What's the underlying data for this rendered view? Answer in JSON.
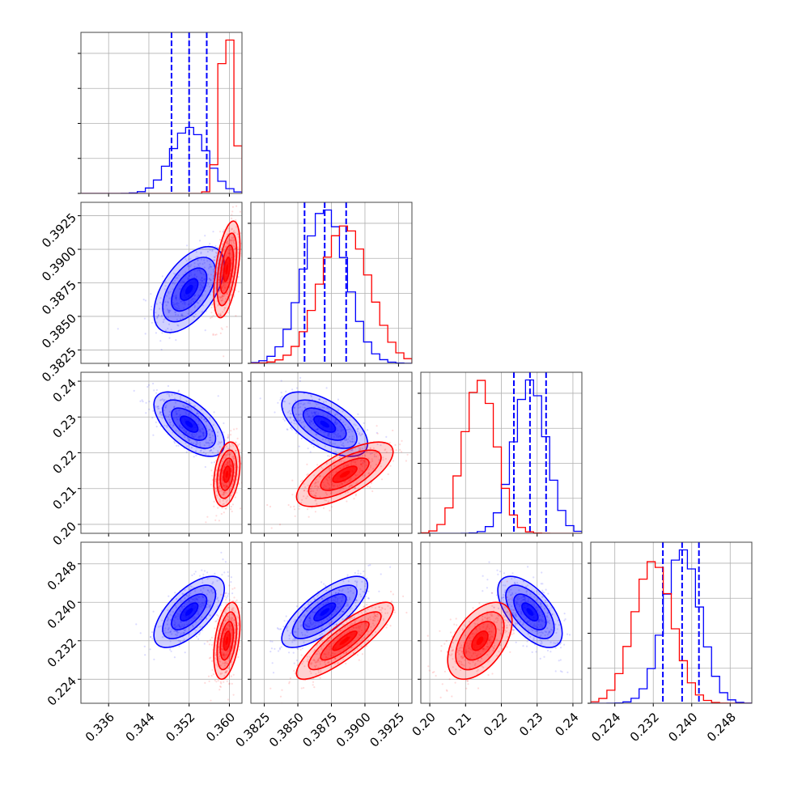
{
  "chart_data": {
    "type": "corner",
    "grid": true,
    "series": [
      {
        "color": "#0000ff",
        "quantile_lines": "dashed",
        "mean": [
          0.352,
          0.387,
          0.228,
          0.238
        ],
        "sd": [
          0.0035,
          0.0016,
          0.0045,
          0.0037
        ],
        "corr": [
          [
            1,
            0.55,
            -0.6,
            0.65
          ],
          [
            0.55,
            1,
            -0.6,
            0.75
          ],
          [
            -0.6,
            -0.6,
            1,
            -0.6
          ],
          [
            0.65,
            0.75,
            -0.6,
            1
          ]
        ],
        "quantiles": [
          [
            0.3485,
            0.352,
            0.3555
          ],
          [
            0.3855,
            0.387,
            0.3886
          ],
          [
            0.2235,
            0.228,
            0.2325
          ],
          [
            0.234,
            0.238,
            0.2415
          ]
        ]
      },
      {
        "color": "#ff0000",
        "mean": [
          0.3595,
          0.3885,
          0.214,
          0.232
        ],
        "sd": [
          0.0013,
          0.0018,
          0.0045,
          0.004
        ],
        "corr": [
          [
            1,
            0.5,
            0.3,
            0.4
          ],
          [
            0.5,
            1,
            0.7,
            0.85
          ],
          [
            0.3,
            0.7,
            1,
            0.5
          ],
          [
            0.4,
            0.85,
            0.5,
            1
          ]
        ]
      }
    ],
    "params": [
      {
        "range": [
          0.3305,
          0.3625
        ],
        "ticks": [
          0.336,
          0.344,
          0.352,
          0.36
        ],
        "tick_labels": [
          "0.336",
          "0.344",
          "0.352",
          "0.360"
        ]
      },
      {
        "range": [
          0.3815,
          0.3935
        ],
        "ticks": [
          0.3825,
          0.385,
          0.3875,
          0.39,
          0.3925
        ],
        "tick_labels": [
          "0.3825",
          "0.3850",
          "0.3875",
          "0.3900",
          "0.3925"
        ]
      },
      {
        "range": [
          0.1975,
          0.2425
        ],
        "ticks": [
          0.2,
          0.21,
          0.22,
          0.23,
          0.24
        ],
        "tick_labels": [
          "0.20",
          "0.21",
          "0.22",
          "0.23",
          "0.24"
        ]
      },
      {
        "range": [
          0.219,
          0.2525
        ],
        "ticks": [
          0.224,
          0.232,
          0.24,
          0.248
        ],
        "tick_labels": [
          "0.224",
          "0.232",
          "0.240",
          "0.248"
        ]
      }
    ]
  }
}
